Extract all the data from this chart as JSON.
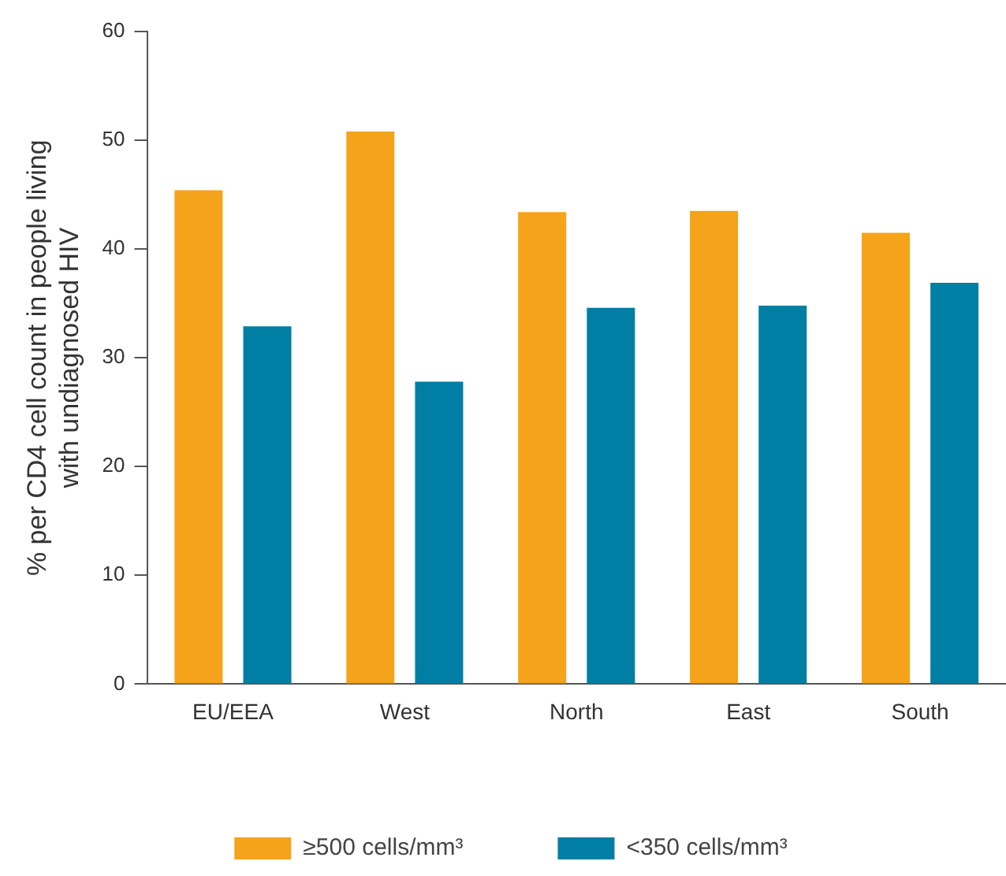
{
  "chart_data": {
    "type": "bar",
    "ylabel": "% per CD4 cell count in people living with undiagnosed HIV",
    "categories": [
      "EU/EEA",
      "West",
      "North",
      "East",
      "South"
    ],
    "series": [
      {
        "name": "≥500 cells/mm³",
        "color": "#f5a31a",
        "values": [
          45.4,
          50.8,
          43.4,
          43.5,
          41.5
        ]
      },
      {
        "name": "<350 cells/mm³",
        "color": "#007ea3",
        "values": [
          32.9,
          27.8,
          34.6,
          34.8,
          36.9
        ]
      }
    ],
    "ylim": [
      0,
      60
    ],
    "yticks": [
      0,
      10,
      20,
      30,
      40,
      50,
      60
    ],
    "grid": false,
    "legend": "bottom"
  }
}
